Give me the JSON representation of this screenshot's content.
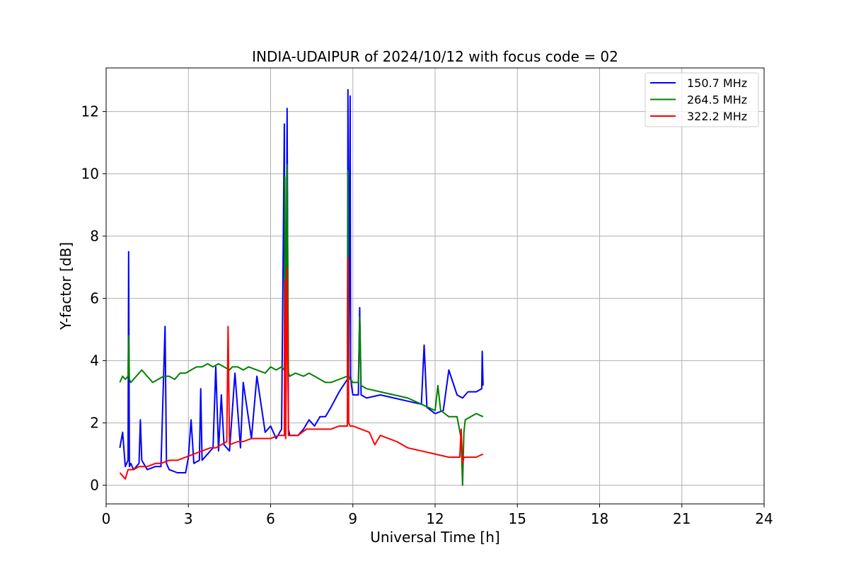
{
  "chart_data": {
    "type": "line",
    "title": "INDIA-UDAIPUR of 2024/10/12 with focus code = 02",
    "xlabel": "Universal Time [h]",
    "ylabel": "Y-factor [dB]",
    "xlim": [
      0,
      24
    ],
    "ylim": [
      -0.6,
      13.4
    ],
    "xticks": [
      0,
      3,
      6,
      9,
      12,
      15,
      18,
      21,
      24
    ],
    "yticks": [
      0,
      2,
      4,
      6,
      8,
      10,
      12
    ],
    "grid": true,
    "legend_position": "top-right",
    "series": [
      {
        "name": "150.7 MHz",
        "color": "#0000ff",
        "x": [
          0.5,
          0.6,
          0.7,
          0.8,
          0.82,
          0.85,
          0.9,
          1.0,
          1.2,
          1.25,
          1.3,
          1.5,
          1.8,
          2.0,
          2.15,
          2.2,
          2.3,
          2.6,
          2.9,
          3.0,
          3.1,
          3.2,
          3.4,
          3.45,
          3.5,
          3.7,
          3.9,
          4.0,
          4.1,
          4.2,
          4.3,
          4.5,
          4.7,
          4.9,
          5.0,
          5.3,
          5.5,
          5.8,
          6.0,
          6.2,
          6.4,
          6.5,
          6.52,
          6.55,
          6.6,
          6.65,
          6.7,
          7.0,
          7.2,
          7.4,
          7.6,
          7.8,
          8.0,
          8.2,
          8.5,
          8.8,
          8.82,
          8.85,
          8.9,
          8.92,
          8.95,
          9.0,
          9.2,
          9.25,
          9.3,
          9.5,
          10.0,
          10.5,
          11.0,
          11.5,
          11.6,
          11.7,
          12.0,
          12.3,
          12.5,
          12.8,
          13.0,
          13.2,
          13.5,
          13.7,
          13.72,
          13.75
        ],
        "y": [
          1.2,
          1.7,
          0.6,
          0.8,
          7.5,
          0.6,
          0.7,
          0.5,
          0.7,
          2.1,
          0.8,
          0.5,
          0.6,
          0.6,
          5.1,
          0.7,
          0.5,
          0.4,
          0.4,
          0.9,
          2.1,
          0.7,
          0.8,
          3.1,
          0.8,
          1.0,
          1.2,
          3.8,
          1.1,
          2.9,
          1.3,
          1.1,
          3.6,
          1.2,
          3.3,
          1.5,
          3.5,
          1.7,
          1.9,
          1.5,
          1.8,
          11.6,
          2.0,
          1.7,
          12.1,
          1.8,
          1.6,
          1.6,
          1.8,
          2.1,
          1.9,
          2.2,
          2.2,
          2.5,
          3.0,
          3.4,
          12.7,
          4.0,
          12.5,
          3.5,
          3.2,
          2.9,
          2.9,
          5.7,
          2.9,
          2.8,
          2.9,
          2.8,
          2.7,
          2.6,
          4.5,
          2.5,
          2.3,
          2.4,
          3.7,
          2.9,
          2.8,
          3.0,
          3.0,
          3.1,
          4.3,
          3.2
        ]
      },
      {
        "name": "264.5 MHz",
        "color": "#008000",
        "x": [
          0.5,
          0.6,
          0.7,
          0.8,
          0.82,
          0.85,
          0.9,
          1.1,
          1.3,
          1.5,
          1.7,
          1.9,
          2.1,
          2.3,
          2.5,
          2.7,
          2.9,
          3.1,
          3.3,
          3.5,
          3.7,
          3.9,
          4.1,
          4.3,
          4.5,
          4.6,
          4.8,
          5.0,
          5.2,
          5.5,
          5.8,
          6.0,
          6.2,
          6.4,
          6.5,
          6.52,
          6.55,
          6.6,
          6.65,
          6.7,
          6.9,
          7.2,
          7.4,
          7.6,
          7.8,
          8.0,
          8.2,
          8.5,
          8.8,
          8.82,
          8.85,
          8.9,
          9.0,
          9.2,
          9.25,
          9.3,
          9.5,
          10.0,
          10.5,
          11.0,
          11.5,
          12.0,
          12.1,
          12.2,
          12.5,
          12.8,
          12.95,
          13.0,
          13.05,
          13.1,
          13.3,
          13.5,
          13.75
        ],
        "y": [
          3.3,
          3.5,
          3.4,
          3.5,
          4.8,
          3.4,
          3.3,
          3.5,
          3.7,
          3.5,
          3.3,
          3.4,
          3.5,
          3.5,
          3.4,
          3.6,
          3.6,
          3.7,
          3.8,
          3.8,
          3.9,
          3.8,
          3.9,
          3.8,
          3.7,
          3.8,
          3.8,
          3.7,
          3.8,
          3.7,
          3.6,
          3.8,
          3.7,
          3.8,
          3.7,
          9.9,
          3.6,
          10.3,
          3.6,
          3.5,
          3.6,
          3.5,
          3.6,
          3.5,
          3.4,
          3.3,
          3.3,
          3.4,
          3.5,
          10.1,
          3.5,
          3.4,
          3.3,
          3.3,
          5.4,
          3.2,
          3.1,
          3.0,
          2.9,
          2.8,
          2.6,
          2.4,
          3.2,
          2.4,
          2.2,
          2.2,
          1.5,
          0.0,
          1.7,
          2.1,
          2.2,
          2.3,
          2.2
        ]
      },
      {
        "name": "322.2 MHz",
        "color": "#ff0000",
        "x": [
          0.5,
          0.6,
          0.7,
          0.8,
          1.0,
          1.2,
          1.5,
          1.8,
          2.0,
          2.3,
          2.6,
          2.9,
          3.2,
          3.5,
          3.8,
          4.0,
          4.2,
          4.4,
          4.45,
          4.5,
          4.8,
          5.0,
          5.3,
          5.6,
          6.0,
          6.3,
          6.5,
          6.52,
          6.55,
          6.6,
          6.65,
          6.7,
          7.0,
          7.3,
          7.6,
          7.9,
          8.2,
          8.5,
          8.8,
          8.82,
          8.85,
          8.9,
          9.0,
          9.3,
          9.6,
          9.8,
          10.0,
          10.3,
          10.6,
          11.0,
          11.5,
          12.0,
          12.5,
          12.9,
          12.95,
          13.0,
          13.05,
          13.2,
          13.5,
          13.75
        ],
        "y": [
          0.4,
          0.3,
          0.2,
          0.5,
          0.5,
          0.6,
          0.6,
          0.7,
          0.7,
          0.8,
          0.8,
          0.9,
          1.0,
          1.1,
          1.2,
          1.2,
          1.3,
          1.4,
          5.1,
          1.3,
          1.4,
          1.4,
          1.5,
          1.5,
          1.5,
          1.6,
          1.6,
          6.6,
          1.5,
          7.0,
          1.6,
          1.6,
          1.6,
          1.8,
          1.8,
          1.8,
          1.8,
          1.9,
          1.9,
          7.3,
          2.0,
          1.9,
          1.9,
          1.8,
          1.7,
          1.3,
          1.6,
          1.5,
          1.4,
          1.2,
          1.1,
          1.0,
          0.9,
          0.9,
          1.8,
          0.7,
          0.9,
          0.9,
          0.9,
          1.0
        ]
      }
    ]
  }
}
